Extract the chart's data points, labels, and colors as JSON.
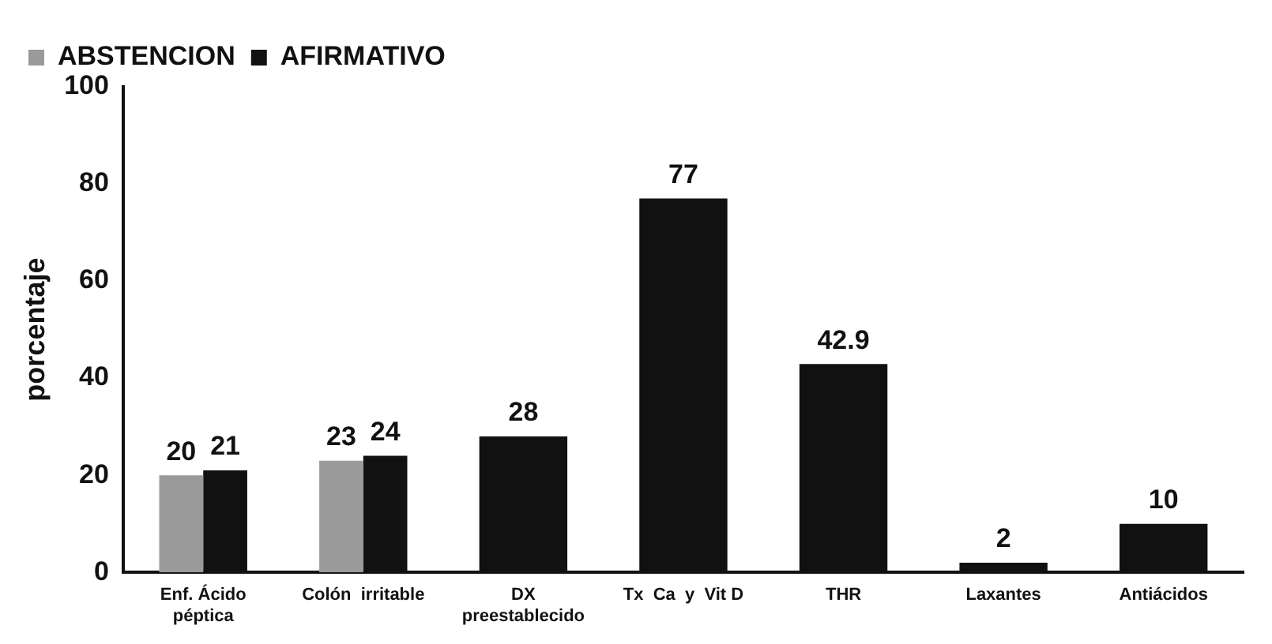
{
  "chart_data": {
    "type": "bar",
    "ylabel": "porcentaje",
    "categories": [
      "Enf. Ácido\npéptica",
      "Colón  irritable",
      "DX\npreestablecido",
      "Tx  Ca  y  Vit D",
      "THR",
      "Laxantes",
      "Antiácidos"
    ],
    "series": [
      {
        "name": "ABSTENCION",
        "color": "#9a9a9a",
        "values": [
          20,
          23,
          null,
          null,
          null,
          null,
          null
        ]
      },
      {
        "name": "AFIRMATIVO",
        "color": "#111111",
        "values": [
          21,
          24,
          28,
          77,
          42.9,
          2,
          10
        ]
      }
    ],
    "ylim": [
      0,
      100
    ],
    "yticks": [
      0,
      20,
      40,
      60,
      80,
      100
    ],
    "grid": false,
    "legend": "top left",
    "data_labels": true
  }
}
